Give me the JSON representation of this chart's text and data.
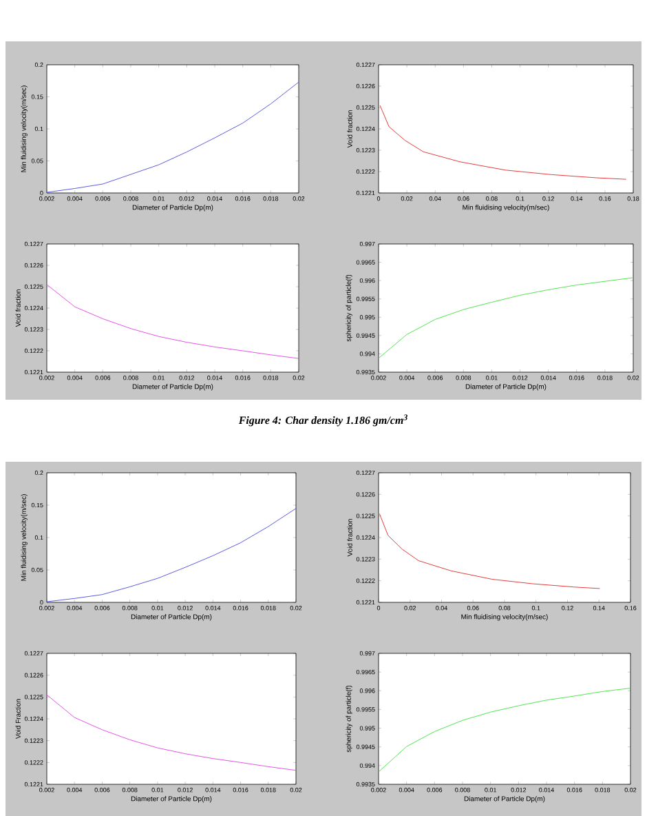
{
  "chart_data": [
    {
      "type": "line",
      "xlabel": "Diameter of Particle Dp(m)",
      "ylabel": "Min fluidising velocity(m/sec)",
      "x": [
        0.002,
        0.004,
        0.006,
        0.008,
        0.01,
        0.012,
        0.014,
        0.016,
        0.018,
        0.02
      ],
      "series": [
        {
          "color": "#5a5ae6",
          "values": [
            0.001,
            0.007,
            0.014,
            0.029,
            0.044,
            0.064,
            0.086,
            0.109,
            0.139,
            0.173
          ]
        }
      ],
      "xlim": [
        0.002,
        0.02
      ],
      "ylim": [
        0,
        0.2
      ],
      "xticks": [
        0.002,
        0.004,
        0.006,
        0.008,
        0.01,
        0.012,
        0.014,
        0.016,
        0.018,
        0.02
      ],
      "yticks": [
        0,
        0.05,
        0.1,
        0.15,
        0.2
      ]
    },
    {
      "type": "line",
      "xlabel": "Min fluidising velocity(m/sec)",
      "ylabel": "Void fraction",
      "x": [
        0.001,
        0.0074,
        0.0187,
        0.0316,
        0.0574,
        0.0897,
        0.122,
        0.154,
        0.175
      ],
      "series": [
        {
          "color": "#e63c3c",
          "values": [
            0.12251,
            0.12241,
            0.122346,
            0.122293,
            0.122246,
            0.122207,
            0.122186,
            0.122171,
            0.122164
          ]
        }
      ],
      "xlim": [
        0,
        0.18
      ],
      "ylim": [
        0.1221,
        0.1227
      ],
      "xticks": [
        0,
        0.02,
        0.04,
        0.06,
        0.08,
        0.1,
        0.12,
        0.14,
        0.16,
        0.18
      ],
      "yticks": [
        0.1221,
        0.1222,
        0.1223,
        0.1224,
        0.1225,
        0.1226,
        0.1227
      ]
    },
    {
      "type": "line",
      "xlabel": "Diameter of Particle Dp(m)",
      "ylabel": "Void fraction",
      "x": [
        0.002,
        0.004,
        0.006,
        0.008,
        0.01,
        0.012,
        0.014,
        0.016,
        0.018,
        0.02
      ],
      "series": [
        {
          "color": "#e650e6",
          "values": [
            0.12251,
            0.122406,
            0.12235,
            0.122304,
            0.122267,
            0.12224,
            0.122218,
            0.1222,
            0.122181,
            0.122164
          ]
        }
      ],
      "xlim": [
        0.002,
        0.02
      ],
      "ylim": [
        0.1221,
        0.1227
      ],
      "xticks": [
        0.002,
        0.004,
        0.006,
        0.008,
        0.01,
        0.012,
        0.014,
        0.016,
        0.018,
        0.02
      ],
      "yticks": [
        0.1221,
        0.1222,
        0.1223,
        0.1224,
        0.1225,
        0.1226,
        0.1227
      ]
    },
    {
      "type": "line",
      "xlabel": "Diameter of Particle Dp(m)",
      "ylabel": "sphericity of particle(f)",
      "x": [
        0.002,
        0.004,
        0.006,
        0.008,
        0.01,
        0.012,
        0.014,
        0.016,
        0.018,
        0.02
      ],
      "series": [
        {
          "color": "#50e650",
          "values": [
            0.99388,
            0.99453,
            0.99494,
            0.99521,
            0.99541,
            0.9956,
            0.99575,
            0.99588,
            0.99598,
            0.99608
          ]
        }
      ],
      "xlim": [
        0.002,
        0.02
      ],
      "ylim": [
        0.9935,
        0.997
      ],
      "xticks": [
        0.002,
        0.004,
        0.006,
        0.008,
        0.01,
        0.012,
        0.014,
        0.016,
        0.018,
        0.02
      ],
      "yticks": [
        0.9935,
        0.994,
        0.9945,
        0.995,
        0.9955,
        0.996,
        0.9965,
        0.997
      ],
      "annotations": [
        "Figure 4: Char density 1.186 gm/cm$^{3}$"
      ]
    },
    {
      "type": "line",
      "xlabel": "Diameter of Particle Dp(m)",
      "ylabel": "Min fluidising velocity(m/sec)",
      "x": [
        0.002,
        0.004,
        0.006,
        0.008,
        0.01,
        0.012,
        0.014,
        0.016,
        0.018,
        0.02
      ],
      "series": [
        {
          "color": "#5a5ae6",
          "values": [
            0.001,
            0.006,
            0.012,
            0.024,
            0.037,
            0.054,
            0.072,
            0.092,
            0.117,
            0.145
          ]
        }
      ],
      "xlim": [
        0.002,
        0.02
      ],
      "ylim": [
        0,
        0.2
      ],
      "xticks": [
        0.002,
        0.004,
        0.006,
        0.008,
        0.01,
        0.012,
        0.014,
        0.016,
        0.018,
        0.02
      ],
      "yticks": [
        0,
        0.05,
        0.1,
        0.15,
        0.2
      ]
    },
    {
      "type": "line",
      "xlabel": "Min fluidising velocity(m/sec)",
      "ylabel": "Void fraction",
      "x": [
        0.0006,
        0.006,
        0.015,
        0.0254,
        0.046,
        0.072,
        0.098,
        0.124,
        0.1405
      ],
      "series": [
        {
          "color": "#e63c3c",
          "values": [
            0.12251,
            0.12241,
            0.122346,
            0.122293,
            0.122246,
            0.122207,
            0.122186,
            0.122171,
            0.122164
          ]
        }
      ],
      "xlim": [
        0,
        0.16
      ],
      "ylim": [
        0.1221,
        0.1227
      ],
      "xticks": [
        0,
        0.02,
        0.04,
        0.06,
        0.08,
        0.1,
        0.12,
        0.14,
        0.16
      ],
      "yticks": [
        0.1221,
        0.1222,
        0.1223,
        0.1224,
        0.1225,
        0.1226,
        0.1227
      ]
    },
    {
      "type": "line",
      "xlabel": "Diameter of Particle Dp(m)",
      "ylabel": "Void Fraction",
      "x": [
        0.002,
        0.004,
        0.006,
        0.008,
        0.01,
        0.012,
        0.014,
        0.016,
        0.018,
        0.02
      ],
      "series": [
        {
          "color": "#e650e6",
          "values": [
            0.12251,
            0.122406,
            0.12235,
            0.122304,
            0.122267,
            0.12224,
            0.122218,
            0.1222,
            0.122181,
            0.122164
          ]
        }
      ],
      "xlim": [
        0.002,
        0.02
      ],
      "ylim": [
        0.1221,
        0.1227
      ],
      "xticks": [
        0.002,
        0.004,
        0.006,
        0.008,
        0.01,
        0.012,
        0.014,
        0.016,
        0.018,
        0.02
      ],
      "yticks": [
        0.1221,
        0.1222,
        0.1223,
        0.1224,
        0.1225,
        0.1226,
        0.1227
      ]
    },
    {
      "type": "line",
      "xlabel": "Diameter of Particle Dp(m)",
      "ylabel": "sphericity of particle(f)",
      "x": [
        0.002,
        0.004,
        0.006,
        0.008,
        0.01,
        0.012,
        0.014,
        0.016,
        0.018,
        0.02
      ],
      "series": [
        {
          "color": "#50e650",
          "values": [
            0.99383,
            0.99451,
            0.99491,
            0.99521,
            0.99543,
            0.9956,
            0.99575,
            0.99586,
            0.99598,
            0.99607
          ]
        }
      ],
      "xlim": [
        0.002,
        0.02
      ],
      "ylim": [
        0.9935,
        0.997
      ],
      "xticks": [
        0.002,
        0.004,
        0.006,
        0.008,
        0.01,
        0.012,
        0.014,
        0.016,
        0.018,
        0.02
      ],
      "yticks": [
        0.9935,
        0.994,
        0.9945,
        0.995,
        0.9955,
        0.996,
        0.9965,
        0.997
      ]
    }
  ]
}
